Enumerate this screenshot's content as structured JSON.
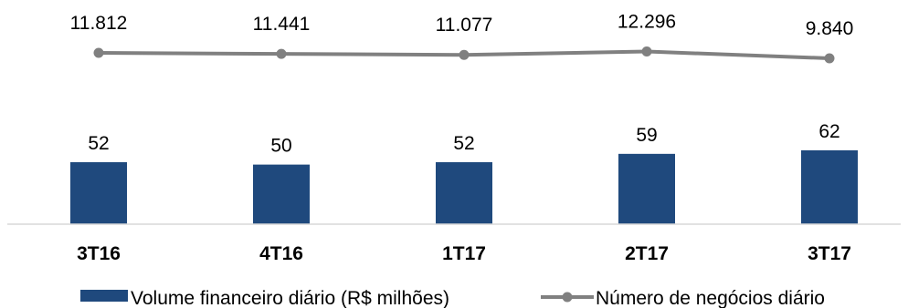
{
  "chart_data": {
    "type": "bar+line",
    "categories": [
      "3T16",
      "4T16",
      "1T17",
      "2T17",
      "3T17"
    ],
    "series": [
      {
        "name": "Volume financeiro diário (R$ milhões)",
        "type": "bar",
        "values": [
          52,
          50,
          52,
          59,
          62
        ],
        "labels": [
          "52",
          "50",
          "52",
          "59",
          "62"
        ],
        "color": "#1F497D"
      },
      {
        "name": "Número de negócios diário",
        "type": "line",
        "values": [
          11812,
          11441,
          11077,
          12296,
          9840
        ],
        "labels": [
          "11.812",
          "11.441",
          "11.077",
          "12.296",
          "9.840"
        ],
        "color": "#808080"
      }
    ],
    "legend": "bottom",
    "grid": false,
    "title": "",
    "xlabel": "",
    "ylabel": ""
  }
}
